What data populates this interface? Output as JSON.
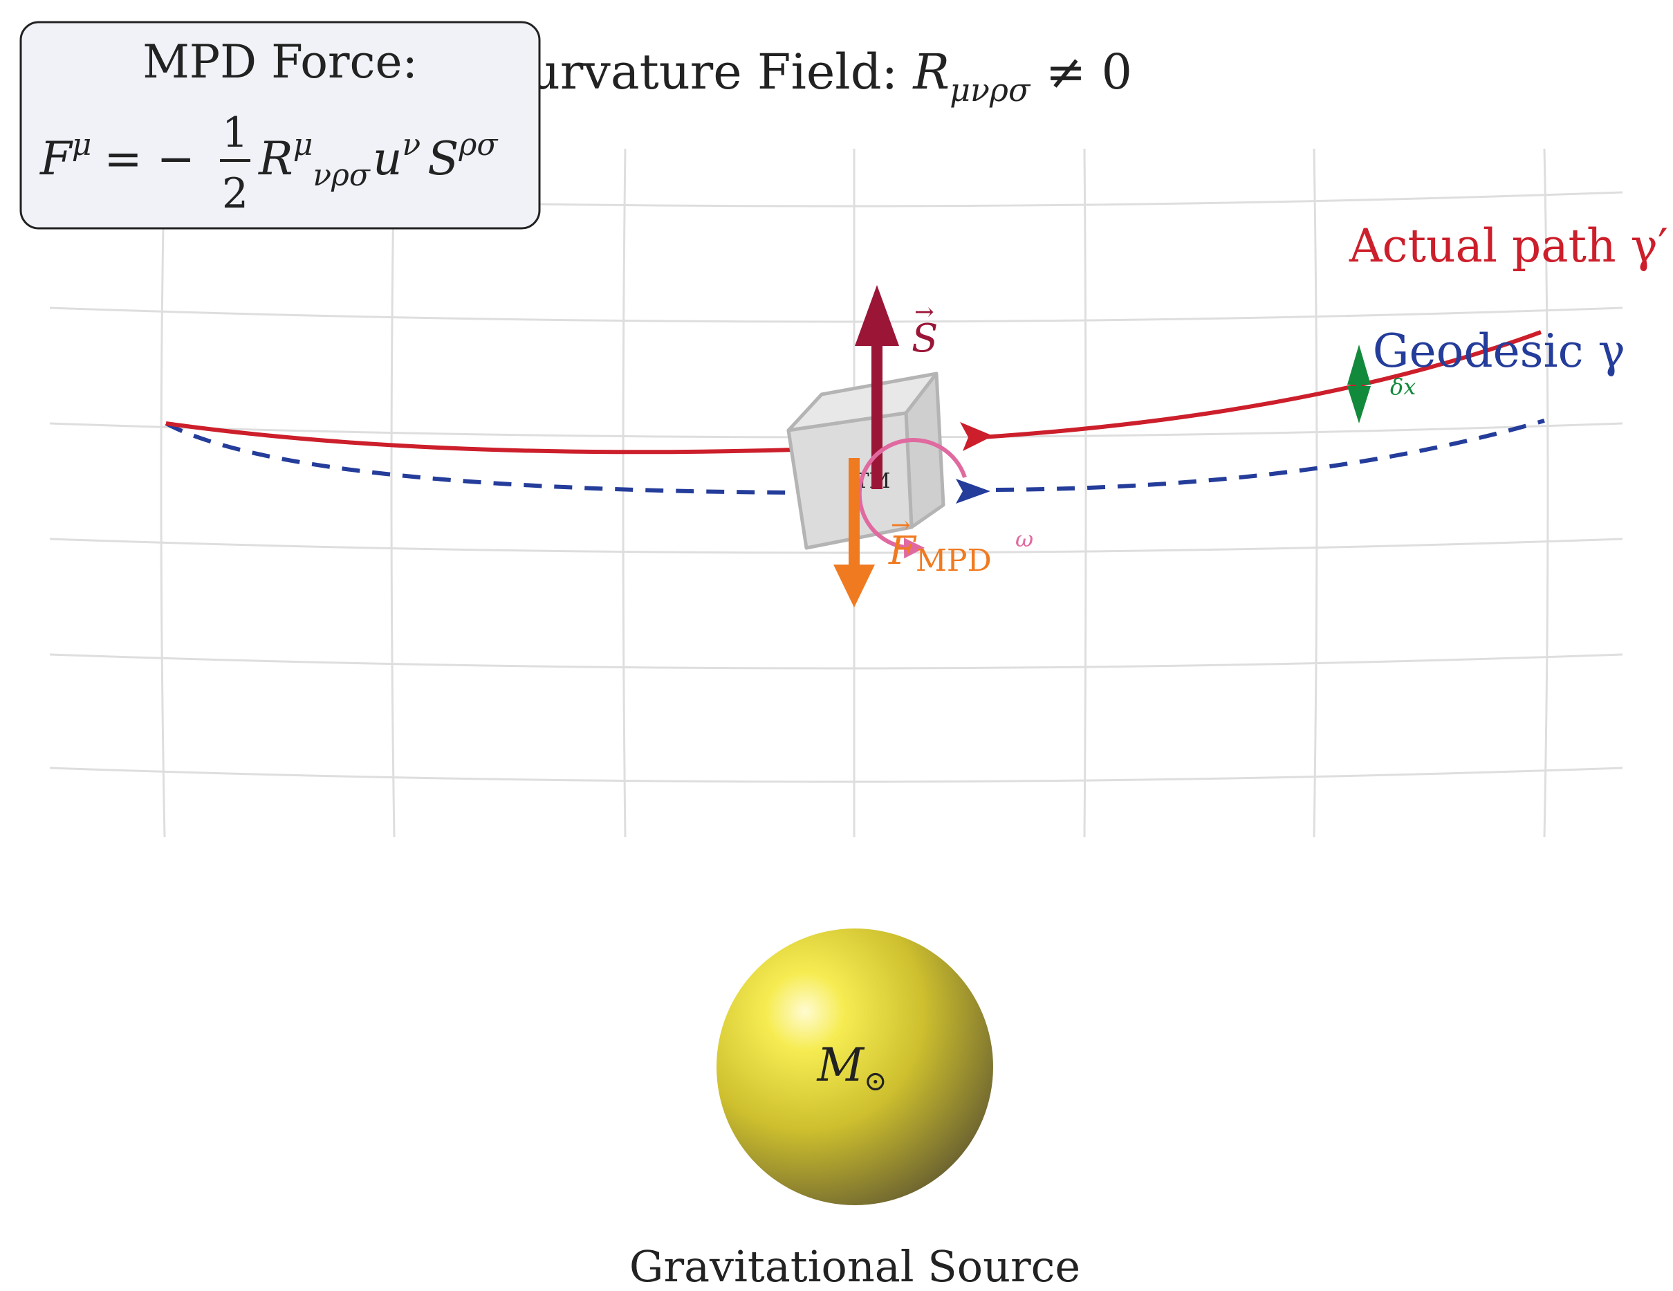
{
  "title": {
    "prefix": "dal Curvature Field: ",
    "tensor_symbol": "R",
    "tensor_indices": "μνρσ",
    "relation": " ≠ 0"
  },
  "formula_box": {
    "heading": "MPD Force:",
    "lhs_symbol": "F",
    "lhs_index": "μ",
    "equals": "= −",
    "frac_num": "1",
    "frac_den": "2",
    "riemann_symbol": "R",
    "riemann_upper": "μ",
    "riemann_lower": "νρσ",
    "velocity_symbol": "u",
    "velocity_index": "ν",
    "spin_symbol": "S",
    "spin_indices": "ρσ"
  },
  "labels": {
    "actual_path": "Actual path γ′",
    "geodesic": "Geodesic γ",
    "spin_vector": "S",
    "force_symbol": "F",
    "force_subscript": "MPD",
    "omega": "ω",
    "delta_x": "δx",
    "test_mass": "TM",
    "mass_symbol": "M",
    "mass_subscript": "⊙",
    "source_caption": "Gravitational Source"
  },
  "colors": {
    "actual_path": "#cc1f2b",
    "geodesic": "#243c9a",
    "spin": "#9b1537",
    "force": "#f07a20",
    "omega": "#e06aa0",
    "delta": "#128a3c",
    "grid": "#dedede",
    "sphere": "#e6d93a"
  }
}
